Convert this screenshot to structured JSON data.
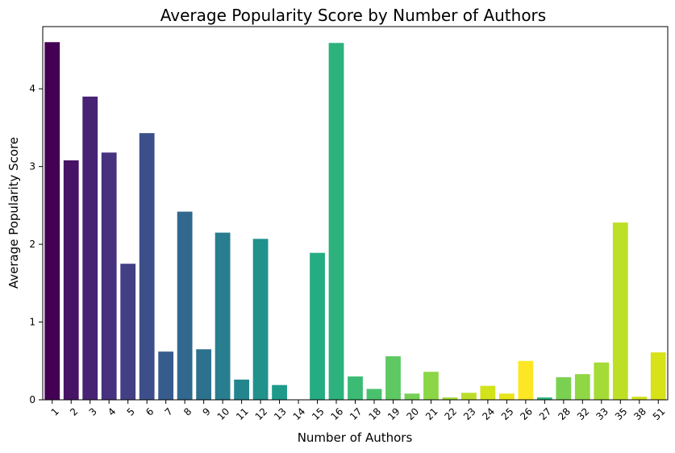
{
  "chart_data": {
    "type": "bar",
    "title": "Average Popularity Score by Number of Authors",
    "xlabel": "Number of Authors",
    "ylabel": "Average Popularity Score",
    "ylim": [
      0,
      4.8
    ],
    "yticks": [
      0,
      1,
      2,
      3,
      4
    ],
    "categories": [
      "1",
      "2",
      "3",
      "4",
      "5",
      "6",
      "7",
      "8",
      "9",
      "10",
      "11",
      "12",
      "13",
      "14",
      "15",
      "16",
      "17",
      "18",
      "19",
      "20",
      "21",
      "22",
      "23",
      "24",
      "25",
      "26",
      "27",
      "28",
      "32",
      "33",
      "35",
      "38",
      "51"
    ],
    "values": [
      4.6,
      3.08,
      3.9,
      3.18,
      1.75,
      3.43,
      0.62,
      2.42,
      0.65,
      2.15,
      0.26,
      2.07,
      0.19,
      0.0,
      1.89,
      4.59,
      0.3,
      0.14,
      0.56,
      0.08,
      0.36,
      0.03,
      0.09,
      0.18,
      0.08,
      0.5,
      0.03,
      0.29,
      0.33,
      0.48,
      2.28,
      0.04,
      0.61
    ],
    "colors": [
      "#440154",
      "#471365",
      "#482374",
      "#46327e",
      "#423f85",
      "#3c4f8a",
      "#365c8d",
      "#31688e",
      "#2c728e",
      "#287d8e",
      "#25858e",
      "#21918c",
      "#1f9a8a",
      "#20a386",
      "#25ac82",
      "#2db27d",
      "#3bbb75",
      "#4ac16d",
      "#5ec962",
      "#75d054",
      "#8bd646",
      "#a2da37",
      "#bade28",
      "#d2e21b",
      "#e9e51a",
      "#fde725",
      "#2db27d",
      "#7ad151",
      "#8fd744",
      "#a5db36",
      "#bddf26",
      "#d2e21b",
      "#d8e219"
    ],
    "grid": false,
    "legend": "none"
  }
}
